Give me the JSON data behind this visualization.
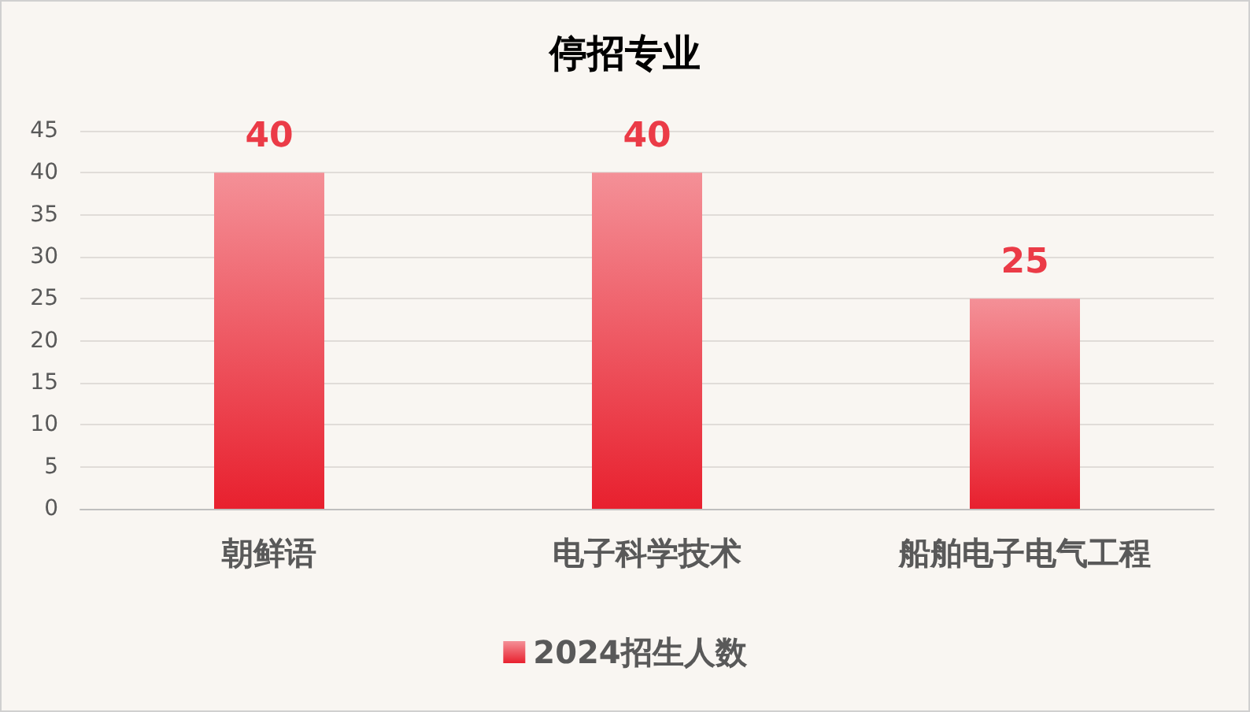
{
  "chart_data": {
    "type": "bar",
    "title": "停招专业",
    "categories": [
      "朝鲜语",
      "电子科学技术",
      "船舶电子电气工程"
    ],
    "series": [
      {
        "name": "2024招生人数",
        "color": "#e8202e",
        "values": [
          40,
          40,
          25
        ]
      }
    ],
    "ylim": [
      0,
      45
    ],
    "yticks": [
      0,
      5,
      10,
      15,
      20,
      25,
      30,
      35,
      40,
      45
    ],
    "grid": "y",
    "legend": "bottom",
    "data_labels": true
  }
}
